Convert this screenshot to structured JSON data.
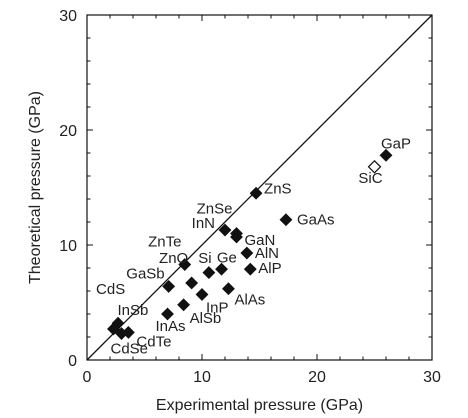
{
  "chart_data": {
    "type": "scatter",
    "title": "",
    "xlabel": "Experimental pressure (GPa)",
    "ylabel": "Theoretical pressure (GPa)",
    "xlim": [
      0,
      30
    ],
    "ylim": [
      0,
      30
    ],
    "xticks": [
      "0",
      "10",
      "20",
      "30"
    ],
    "yticks": [
      "0",
      "10",
      "20",
      "30"
    ],
    "diagonal_line": true,
    "grid": false,
    "legend": "none",
    "marker_color": "#111111",
    "points": [
      {
        "label": "GaP",
        "x": 26.0,
        "y": 17.8,
        "marker": "filled-diamond"
      },
      {
        "label": "SiC",
        "x": 25.0,
        "y": 16.8,
        "marker": "open-diamond"
      },
      {
        "label": "ZnS",
        "x": 14.7,
        "y": 14.5,
        "marker": "filled-diamond"
      },
      {
        "label": "GaAs",
        "x": 17.3,
        "y": 12.2,
        "marker": "filled-diamond"
      },
      {
        "label": "ZnSe",
        "x": 13.0,
        "y": 11.0,
        "marker": "filled-diamond"
      },
      {
        "label": "InN",
        "x": 12.0,
        "y": 11.3,
        "marker": "filled-diamond"
      },
      {
        "label": "GaN",
        "x": 13.0,
        "y": 10.7,
        "marker": "filled-diamond"
      },
      {
        "label": "AlN",
        "x": 13.9,
        "y": 9.3,
        "marker": "filled-diamond"
      },
      {
        "label": "AlP",
        "x": 14.2,
        "y": 7.9,
        "marker": "filled-diamond"
      },
      {
        "label": "Si",
        "x": 11.7,
        "y": 7.9,
        "marker": "filled-diamond"
      },
      {
        "label": "Ge",
        "x": 10.6,
        "y": 7.6,
        "marker": "filled-diamond"
      },
      {
        "label": "ZnTe",
        "x": 8.5,
        "y": 8.3,
        "marker": "filled-diamond"
      },
      {
        "label": "AlAs",
        "x": 12.3,
        "y": 6.2,
        "marker": "filled-diamond"
      },
      {
        "label": "ZnO",
        "x": 9.1,
        "y": 6.7,
        "marker": "filled-diamond"
      },
      {
        "label": "GaSb",
        "x": 7.1,
        "y": 6.4,
        "marker": "filled-diamond"
      },
      {
        "label": "InP",
        "x": 10.0,
        "y": 5.7,
        "marker": "filled-diamond"
      },
      {
        "label": "AlSb",
        "x": 8.4,
        "y": 4.8,
        "marker": "filled-diamond"
      },
      {
        "label": "InAs",
        "x": 7.0,
        "y": 4.0,
        "marker": "filled-diamond"
      },
      {
        "label": "CdS",
        "x": 2.7,
        "y": 3.2,
        "marker": "filled-diamond"
      },
      {
        "label": "InSb",
        "x": 2.3,
        "y": 2.7,
        "marker": "filled-diamond"
      },
      {
        "label": "CdSe",
        "x": 3.0,
        "y": 2.3,
        "marker": "filled-diamond"
      },
      {
        "label": "CdTe",
        "x": 3.6,
        "y": 2.4,
        "marker": "filled-diamond"
      }
    ]
  }
}
